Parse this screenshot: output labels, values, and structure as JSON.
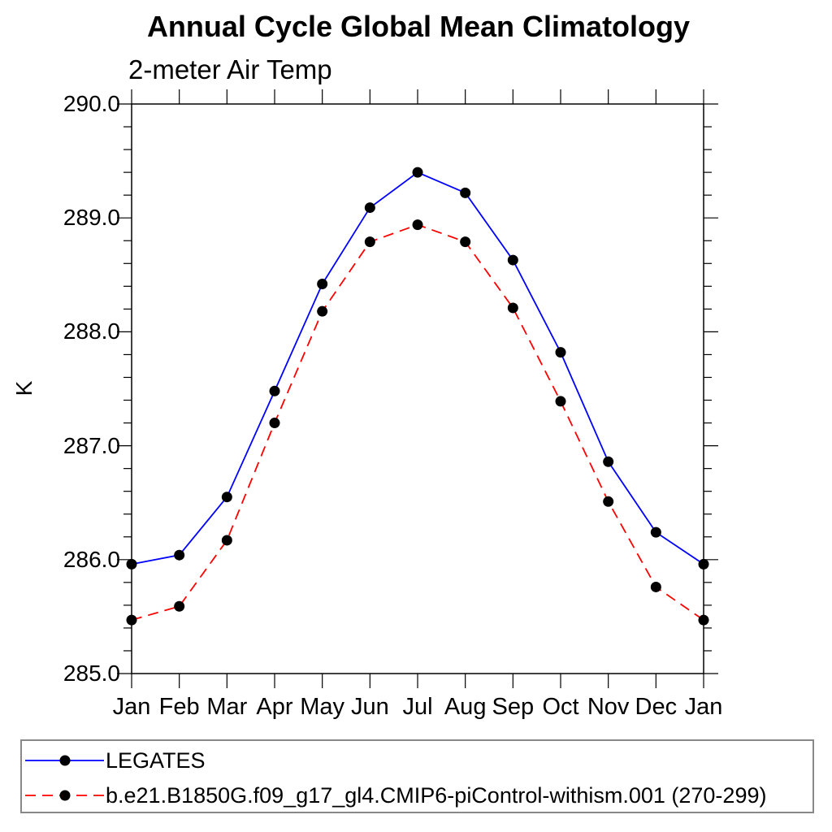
{
  "chart_data": {
    "type": "line",
    "title": "Annual Cycle Global Mean Climatology",
    "subtitle": "2-meter Air Temp",
    "ylabel": "K",
    "xlabel": "",
    "x_categories": [
      "Jan",
      "Feb",
      "Mar",
      "Apr",
      "May",
      "Jun",
      "Jul",
      "Aug",
      "Sep",
      "Oct",
      "Nov",
      "Dec",
      "Jan"
    ],
    "ylim": [
      285.0,
      290.0
    ],
    "ytick_labels": [
      "290.0",
      "289.0",
      "288.0",
      "287.0",
      "286.0",
      "285.0"
    ],
    "ytick_step": 1.0,
    "yminor_step": 0.2,
    "grid": false,
    "legend_position": "bottom-left-box",
    "series": [
      {
        "name": "LEGATES",
        "color": "#0000ff",
        "style": "solid",
        "marker": "circle",
        "marker_color": "#000000",
        "values": [
          285.96,
          286.04,
          286.55,
          287.48,
          288.42,
          289.09,
          289.4,
          289.22,
          288.63,
          287.82,
          286.86,
          286.24,
          285.96
        ]
      },
      {
        "name": "b.e21.B1850G.f09_g17_gl4.CMIP6-piControl-withism.001 (270-299)",
        "color": "#ff0000",
        "style": "dashed",
        "marker": "circle",
        "marker_color": "#000000",
        "values": [
          285.47,
          285.59,
          286.17,
          287.2,
          288.18,
          288.79,
          288.94,
          288.79,
          288.21,
          287.39,
          286.51,
          285.76,
          285.47
        ]
      }
    ],
    "colors": {
      "axis": "#000000",
      "tick": "#000000",
      "marker": "#000000",
      "legend_border": "#888888"
    }
  }
}
